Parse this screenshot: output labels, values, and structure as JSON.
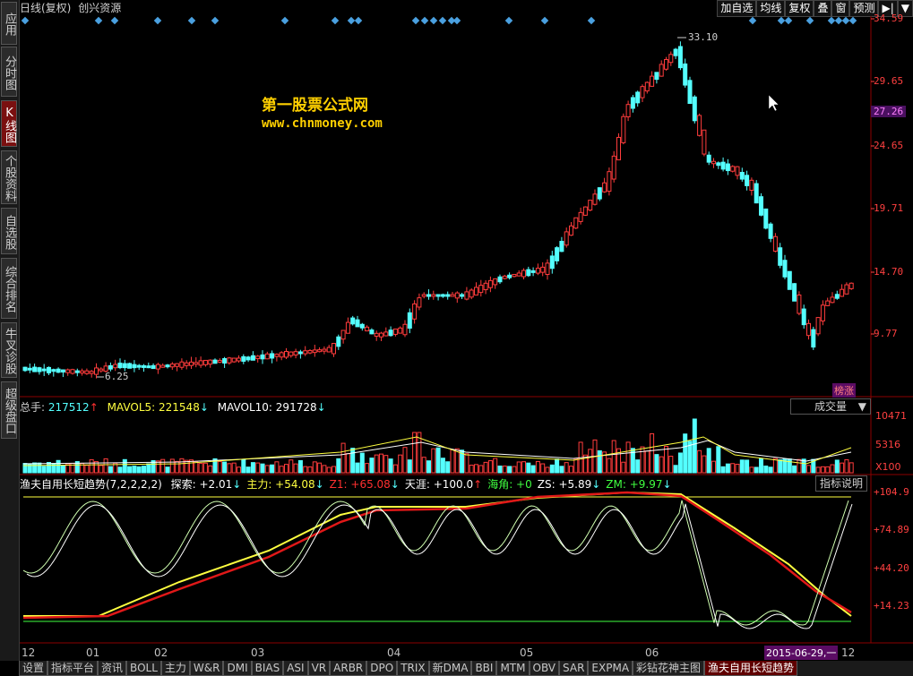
{
  "left_tabs": [
    {
      "label": "应用",
      "active": false
    },
    {
      "label": "分时图",
      "active": false
    },
    {
      "label": "K线图",
      "active": true
    },
    {
      "label": "个股资料",
      "active": false
    },
    {
      "label": "自选股",
      "active": false
    },
    {
      "label": "综合排名",
      "active": false
    },
    {
      "label": "牛叉诊股",
      "active": false
    },
    {
      "label": "超级盘口",
      "active": false
    }
  ],
  "header": {
    "period": "日线(复权)",
    "stock": "创兴资源",
    "buttons": [
      "加自选",
      "均线",
      "复权",
      "叠",
      "窗",
      "预测",
      "▶|",
      "▼"
    ]
  },
  "watermark": {
    "line1": "第一股票公式网",
    "line2": "www.chnmoney.com"
  },
  "price_axis": [
    "34.59",
    "29.65",
    "27.26",
    "24.65",
    "19.71",
    "14.70",
    "9.77"
  ],
  "price_axis_highlight": "27.26",
  "annotations": {
    "high": "33.10",
    "low": "6.25",
    "badge": "榜涨"
  },
  "volume": {
    "total_label": "总手:",
    "total_value": "217512",
    "mavol5_label": "MAVOL5:",
    "mavol5_value": "221548",
    "mavol10_label": "MAVOL10:",
    "mavol10_value": "291728",
    "dropdown": "成交量",
    "axis": [
      "10471",
      "5316",
      "X100"
    ]
  },
  "indicator": {
    "name": "渔夫自用长短趋势(7,2,2,2,2)",
    "items": [
      {
        "label": "探索: +2.01",
        "arrow": "↓",
        "color": "#ffffff"
      },
      {
        "label": "主力: +54.08",
        "arrow": "↓",
        "color": "#ffff40"
      },
      {
        "label": "Z1: +65.08",
        "arrow": "↓",
        "color": "#ff3030"
      },
      {
        "label": "天涯: +100.0",
        "arrow": "↑",
        "color": "#ffffff"
      },
      {
        "label": "海角: +0",
        "arrow": "",
        "color": "#40ff40"
      },
      {
        "label": "ZS: +5.89",
        "arrow": "↓",
        "color": "#ffffff"
      },
      {
        "label": "ZM: +9.97",
        "arrow": "↓",
        "color": "#40ff40"
      }
    ],
    "button": "指标说明",
    "axis": [
      "+104.9",
      "+74.89",
      "+44.20",
      "+14.23"
    ]
  },
  "x_axis": [
    "12",
    "01",
    "02",
    "03",
    "04",
    "05",
    "06",
    "12"
  ],
  "date_highlight": "2015-06-29,一",
  "bottom_tabs": [
    "设置",
    "指标平台",
    "资讯",
    "BOLL",
    "主力",
    "W&R",
    "DMI",
    "BIAS",
    "ASI",
    "VR",
    "ARBR",
    "DPO",
    "TRIX",
    "新DMA",
    "BBI",
    "MTM",
    "OBV",
    "SAR",
    "EXPMA",
    "彩钻花神主图",
    "渔夫自用长短趋势"
  ],
  "bottom_tab_active": "渔夫自用长短趋势",
  "colors": {
    "up": "#ff3c3c",
    "down": "#54ffff",
    "axis": "#ff4040"
  }
}
